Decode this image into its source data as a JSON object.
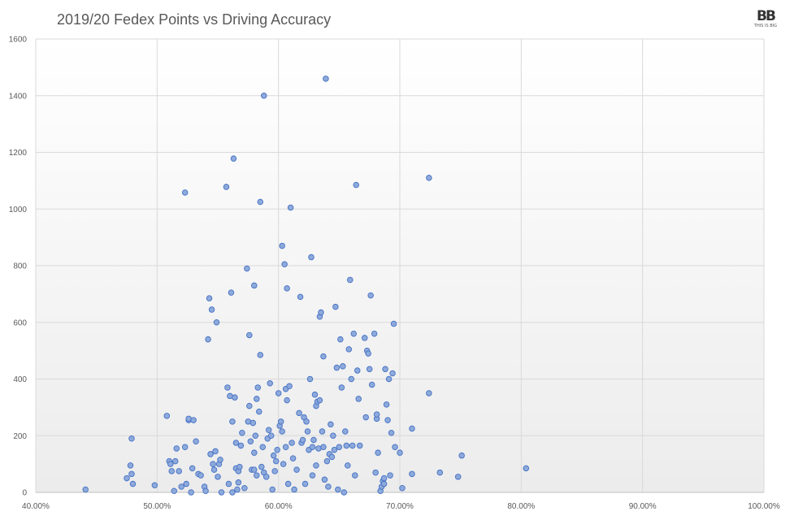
{
  "chart_data": {
    "type": "scatter",
    "title": "2019/20 Fedex Points vs Driving Accuracy",
    "xlabel": "",
    "ylabel": "",
    "xlim": [
      0.4,
      1.0
    ],
    "ylim": [
      0,
      1600
    ],
    "x_ticks": [
      "40.00%",
      "50.00%",
      "60.00%",
      "70.00%",
      "80.00%",
      "90.00%",
      "100.00%"
    ],
    "y_ticks": [
      "0",
      "200",
      "400",
      "600",
      "800",
      "1000",
      "1200",
      "1400",
      "1600"
    ],
    "grid": true,
    "marker_color": "#8EA9DB",
    "marker_edge": "#4472C4",
    "points": [
      [
        0.441,
        10
      ],
      [
        0.475,
        50
      ],
      [
        0.478,
        95
      ],
      [
        0.479,
        65
      ],
      [
        0.479,
        190
      ],
      [
        0.48,
        30
      ],
      [
        0.498,
        25
      ],
      [
        0.508,
        270
      ],
      [
        0.51,
        110
      ],
      [
        0.511,
        100
      ],
      [
        0.512,
        75
      ],
      [
        0.514,
        5
      ],
      [
        0.515,
        110
      ],
      [
        0.516,
        155
      ],
      [
        0.518,
        75
      ],
      [
        0.52,
        20
      ],
      [
        0.523,
        160
      ],
      [
        0.523,
        1058
      ],
      [
        0.524,
        30
      ],
      [
        0.526,
        255
      ],
      [
        0.526,
        260
      ],
      [
        0.528,
        0
      ],
      [
        0.529,
        85
      ],
      [
        0.53,
        255
      ],
      [
        0.532,
        180
      ],
      [
        0.534,
        65
      ],
      [
        0.536,
        60
      ],
      [
        0.539,
        20
      ],
      [
        0.54,
        5
      ],
      [
        0.542,
        540
      ],
      [
        0.543,
        685
      ],
      [
        0.544,
        135
      ],
      [
        0.545,
        645
      ],
      [
        0.546,
        100
      ],
      [
        0.547,
        80
      ],
      [
        0.548,
        145
      ],
      [
        0.549,
        600
      ],
      [
        0.55,
        55
      ],
      [
        0.551,
        100
      ],
      [
        0.552,
        115
      ],
      [
        0.553,
        0
      ],
      [
        0.557,
        1078
      ],
      [
        0.558,
        370
      ],
      [
        0.559,
        30
      ],
      [
        0.56,
        340
      ],
      [
        0.561,
        705
      ],
      [
        0.562,
        250
      ],
      [
        0.562,
        0
      ],
      [
        0.563,
        1178
      ],
      [
        0.564,
        335
      ],
      [
        0.565,
        175
      ],
      [
        0.565,
        85
      ],
      [
        0.566,
        10
      ],
      [
        0.567,
        75
      ],
      [
        0.567,
        35
      ],
      [
        0.568,
        90
      ],
      [
        0.569,
        165
      ],
      [
        0.57,
        210
      ],
      [
        0.572,
        15
      ],
      [
        0.574,
        790
      ],
      [
        0.575,
        250
      ],
      [
        0.576,
        305
      ],
      [
        0.576,
        555
      ],
      [
        0.577,
        180
      ],
      [
        0.578,
        80
      ],
      [
        0.579,
        245
      ],
      [
        0.58,
        730
      ],
      [
        0.58,
        140
      ],
      [
        0.58,
        80
      ],
      [
        0.581,
        200
      ],
      [
        0.582,
        330
      ],
      [
        0.582,
        60
      ],
      [
        0.583,
        370
      ],
      [
        0.584,
        285
      ],
      [
        0.585,
        1025
      ],
      [
        0.585,
        485
      ],
      [
        0.586,
        90
      ],
      [
        0.587,
        160
      ],
      [
        0.588,
        1400
      ],
      [
        0.588,
        70
      ],
      [
        0.59,
        55
      ],
      [
        0.591,
        190
      ],
      [
        0.592,
        220
      ],
      [
        0.593,
        385
      ],
      [
        0.594,
        200
      ],
      [
        0.595,
        10
      ],
      [
        0.596,
        130
      ],
      [
        0.597,
        75
      ],
      [
        0.598,
        110
      ],
      [
        0.599,
        150
      ],
      [
        0.6,
        350
      ],
      [
        0.601,
        235
      ],
      [
        0.602,
        250
      ],
      [
        0.603,
        870
      ],
      [
        0.603,
        215
      ],
      [
        0.604,
        100
      ],
      [
        0.605,
        805
      ],
      [
        0.606,
        365
      ],
      [
        0.606,
        160
      ],
      [
        0.607,
        720
      ],
      [
        0.607,
        325
      ],
      [
        0.608,
        30
      ],
      [
        0.609,
        375
      ],
      [
        0.61,
        1005
      ],
      [
        0.611,
        175
      ],
      [
        0.612,
        120
      ],
      [
        0.613,
        10
      ],
      [
        0.615,
        80
      ],
      [
        0.617,
        280
      ],
      [
        0.618,
        690
      ],
      [
        0.619,
        175
      ],
      [
        0.62,
        185
      ],
      [
        0.621,
        265
      ],
      [
        0.622,
        30
      ],
      [
        0.623,
        250
      ],
      [
        0.624,
        215
      ],
      [
        0.625,
        150
      ],
      [
        0.626,
        400
      ],
      [
        0.627,
        830
      ],
      [
        0.628,
        160
      ],
      [
        0.628,
        60
      ],
      [
        0.629,
        185
      ],
      [
        0.63,
        345
      ],
      [
        0.631,
        305
      ],
      [
        0.631,
        95
      ],
      [
        0.632,
        320
      ],
      [
        0.633,
        155
      ],
      [
        0.634,
        620
      ],
      [
        0.634,
        325
      ],
      [
        0.635,
        635
      ],
      [
        0.636,
        215
      ],
      [
        0.637,
        480
      ],
      [
        0.637,
        160
      ],
      [
        0.638,
        45
      ],
      [
        0.639,
        1460
      ],
      [
        0.64,
        110
      ],
      [
        0.641,
        20
      ],
      [
        0.642,
        135
      ],
      [
        0.643,
        240
      ],
      [
        0.644,
        125
      ],
      [
        0.645,
        200
      ],
      [
        0.646,
        150
      ],
      [
        0.647,
        655
      ],
      [
        0.648,
        440
      ],
      [
        0.649,
        10
      ],
      [
        0.65,
        160
      ],
      [
        0.651,
        540
      ],
      [
        0.652,
        370
      ],
      [
        0.653,
        445
      ],
      [
        0.654,
        0
      ],
      [
        0.655,
        215
      ],
      [
        0.656,
        165
      ],
      [
        0.657,
        95
      ],
      [
        0.658,
        505
      ],
      [
        0.659,
        750
      ],
      [
        0.66,
        400
      ],
      [
        0.661,
        165
      ],
      [
        0.662,
        560
      ],
      [
        0.663,
        60
      ],
      [
        0.664,
        1085
      ],
      [
        0.665,
        430
      ],
      [
        0.666,
        330
      ],
      [
        0.667,
        165
      ],
      [
        0.671,
        545
      ],
      [
        0.672,
        265
      ],
      [
        0.673,
        500
      ],
      [
        0.674,
        490
      ],
      [
        0.675,
        435
      ],
      [
        0.676,
        695
      ],
      [
        0.677,
        380
      ],
      [
        0.679,
        560
      ],
      [
        0.68,
        70
      ],
      [
        0.681,
        260
      ],
      [
        0.681,
        275
      ],
      [
        0.682,
        140
      ],
      [
        0.684,
        5
      ],
      [
        0.685,
        20
      ],
      [
        0.686,
        40
      ],
      [
        0.687,
        50
      ],
      [
        0.687,
        30
      ],
      [
        0.688,
        435
      ],
      [
        0.689,
        310
      ],
      [
        0.69,
        255
      ],
      [
        0.691,
        400
      ],
      [
        0.692,
        60
      ],
      [
        0.693,
        210
      ],
      [
        0.694,
        420
      ],
      [
        0.695,
        595
      ],
      [
        0.696,
        160
      ],
      [
        0.7,
        140
      ],
      [
        0.702,
        15
      ],
      [
        0.71,
        225
      ],
      [
        0.71,
        65
      ],
      [
        0.724,
        1110
      ],
      [
        0.724,
        350
      ],
      [
        0.733,
        70
      ],
      [
        0.748,
        55
      ],
      [
        0.751,
        130
      ],
      [
        0.804,
        85
      ]
    ]
  },
  "branding": {
    "logo_text": "BB",
    "logo_subtext": "THIS IS BIG"
  }
}
